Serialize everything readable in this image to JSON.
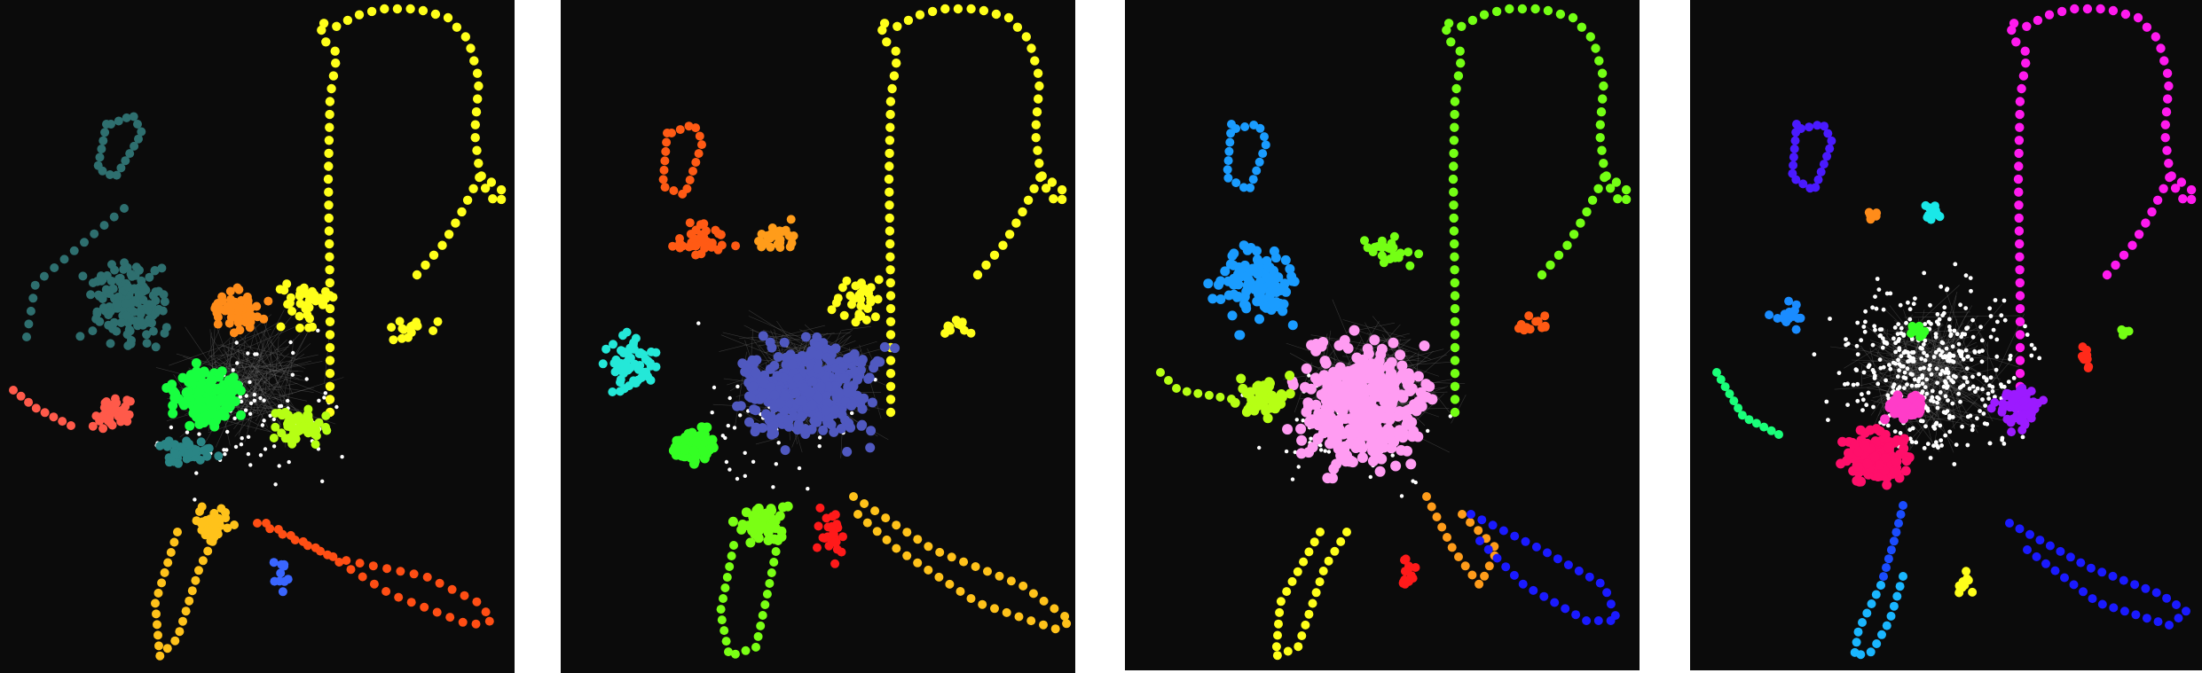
{
  "figure": {
    "panel_count": 4,
    "background_color": "#0b0b0b",
    "unassigned_node_color": "#ffffff",
    "edge_color": "#6a6a6a"
  },
  "panels": [
    {
      "id": "panel-0",
      "communities": [
        {
          "color": "#ffff1a"
        },
        {
          "color": "#2e6f6f"
        },
        {
          "color": "#ff8c1a"
        },
        {
          "color": "#18ff40"
        },
        {
          "color": "#ff5a4a"
        },
        {
          "color": "#b6ff14"
        },
        {
          "color": "#2a8585"
        },
        {
          "color": "#ffc21a"
        },
        {
          "color": "#ff4e14"
        },
        {
          "color": "#3a66ff"
        }
      ]
    },
    {
      "id": "panel-1",
      "communities": [
        {
          "color": "#ffff1a"
        },
        {
          "color": "#ff5a14"
        },
        {
          "color": "#ff9c1a"
        },
        {
          "color": "#24e8d8"
        },
        {
          "color": "#5059c0"
        },
        {
          "color": "#34ff24"
        },
        {
          "color": "#7aff14"
        },
        {
          "color": "#ff1a1a"
        },
        {
          "color": "#ffc21a"
        }
      ]
    },
    {
      "id": "panel-2",
      "communities": [
        {
          "color": "#74ff14"
        },
        {
          "color": "#1a9cff"
        },
        {
          "color": "#ff9cf2"
        },
        {
          "color": "#b6ff14"
        },
        {
          "color": "#ff5a14"
        },
        {
          "color": "#ffff1a"
        },
        {
          "color": "#ff1a1a"
        },
        {
          "color": "#ff9c1a"
        },
        {
          "color": "#1a1aff"
        }
      ]
    },
    {
      "id": "panel-3",
      "communities": [
        {
          "color": "#ff1aee"
        },
        {
          "color": "#4a1aff"
        },
        {
          "color": "#ff8c1a"
        },
        {
          "color": "#1ae8e8"
        },
        {
          "color": "#1a8cff"
        },
        {
          "color": "#1aff7a"
        },
        {
          "color": "#34ff24"
        },
        {
          "color": "#ff0f6a"
        },
        {
          "color": "#ff3cc8"
        },
        {
          "color": "#9c1aff"
        },
        {
          "color": "#ff2a1a"
        },
        {
          "color": "#74ff14"
        },
        {
          "color": "#1a4cff"
        },
        {
          "color": "#1ab6ff"
        },
        {
          "color": "#ffff1a"
        },
        {
          "color": "#1a1aff"
        }
      ]
    }
  ]
}
